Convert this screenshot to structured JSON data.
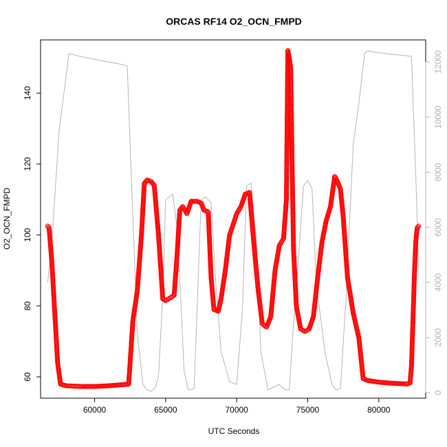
{
  "chart_data": {
    "type": "scatter",
    "title": "ORCAS RF14 O2_OCN_FMPD",
    "xlabel": "UTC Seconds",
    "ylabel": "O2_OCN_FMPD",
    "xlim": [
      56200,
      83300
    ],
    "ylim": [
      54,
      155
    ],
    "y2lim": [
      -200,
      12800
    ],
    "x_ticks": [
      "60000",
      "65000",
      "70000",
      "75000",
      "80000"
    ],
    "x_tick_values": [
      60000,
      65000,
      70000,
      75000,
      80000
    ],
    "y_ticks": [
      "60",
      "80",
      "100",
      "120",
      "140"
    ],
    "y_tick_values": [
      60,
      80,
      100,
      120,
      140
    ],
    "y2_ticks": [
      "0",
      "2000",
      "4000",
      "6000",
      "8000",
      "10000",
      "12000"
    ],
    "y2_tick_values": [
      0,
      2000,
      4000,
      6000,
      8000,
      10000,
      12000
    ],
    "series": [
      {
        "role": "O2_OCN_FMPD",
        "color": "#ff0000",
        "marker": "open-circle",
        "x": [
          56700,
          56800,
          57000,
          57200,
          57400,
          57600,
          57800,
          58000,
          58500,
          59000,
          60000,
          61000,
          62000,
          62400,
          62500,
          62700,
          63000,
          63300,
          63500,
          63700,
          64000,
          64200,
          64500,
          64800,
          65000,
          65300,
          65600,
          65800,
          66000,
          66200,
          66500,
          66800,
          67200,
          67500,
          67700,
          68000,
          68200,
          68400,
          68700,
          68900,
          69200,
          69500,
          69800,
          70000,
          70300,
          70600,
          70900,
          71200,
          71500,
          71800,
          72100,
          72400,
          72700,
          73000,
          73300,
          73500,
          73600,
          73700,
          73800,
          73900,
          74000,
          74200,
          74500,
          74800,
          75100,
          75400,
          75700,
          76000,
          76300,
          76600,
          76900,
          77100,
          77300,
          77500,
          77800,
          78200,
          78600,
          78900,
          79200,
          80000,
          81000,
          82000,
          82200,
          82300,
          82400,
          82500,
          82600,
          82700,
          82800
        ],
        "y": [
          102.5,
          102,
          92,
          78,
          64,
          58,
          57.7,
          57.5,
          57.4,
          57.3,
          57.3,
          57.5,
          57.8,
          58,
          64,
          76,
          84,
          100,
          114.5,
          115.5,
          115,
          114,
          100,
          82,
          81.5,
          82.2,
          83,
          94,
          107,
          108,
          106,
          109.5,
          109.5,
          109,
          107,
          106.5,
          88,
          79,
          78.5,
          82,
          90,
          100,
          103.5,
          106,
          108,
          111.5,
          112,
          98,
          85,
          75,
          74,
          77,
          90,
          97,
          99,
          110,
          152,
          150,
          147,
          120,
          96,
          80,
          73.5,
          72.8,
          73.5,
          77,
          88,
          98,
          104,
          108,
          116.5,
          115,
          113,
          105,
          88,
          78,
          71,
          59.5,
          59,
          58.5,
          58.2,
          58,
          58.3,
          63,
          75,
          88,
          98,
          102,
          102.5
        ],
        "values_note_removed": true
      },
      {
        "role": "altitude",
        "color": "#b5b5b5",
        "x": [
          56700,
          57000,
          57500,
          58000,
          58200,
          59000,
          60000,
          61000,
          62000,
          62300,
          62500,
          62800,
          63000,
          63400,
          63700,
          64000,
          64300,
          64500,
          64800,
          65000,
          65500,
          65800,
          66100,
          66300,
          66600,
          67000,
          67500,
          67800,
          68200,
          68500,
          68900,
          69500,
          70000,
          70400,
          70700,
          71000,
          71400,
          71700,
          72200,
          72600,
          73000,
          73400,
          73700,
          74000,
          74300,
          74700,
          75000,
          75300,
          75600,
          76200,
          76700,
          77000,
          77300,
          77700,
          78200,
          78600,
          79000,
          79200,
          79800,
          80500,
          81500,
          82300,
          82600,
          82800
        ],
        "y": [
          4000,
          5500,
          9500,
          11500,
          12300,
          12200,
          12100,
          12000,
          11900,
          11850,
          9000,
          5000,
          2200,
          300,
          100,
          50,
          200,
          600,
          3500,
          7000,
          7200,
          6000,
          3000,
          800,
          100,
          150,
          7000,
          7100,
          6900,
          4200,
          1500,
          400,
          300,
          3000,
          7500,
          7600,
          5500,
          1500,
          100,
          200,
          300,
          100,
          100,
          2500,
          4500,
          7500,
          7700,
          7400,
          4000,
          1500,
          300,
          100,
          150,
          3500,
          9000,
          10500,
          12300,
          12400,
          12350,
          12300,
          12250,
          12200,
          8000,
          4500
        ]
      }
    ]
  }
}
